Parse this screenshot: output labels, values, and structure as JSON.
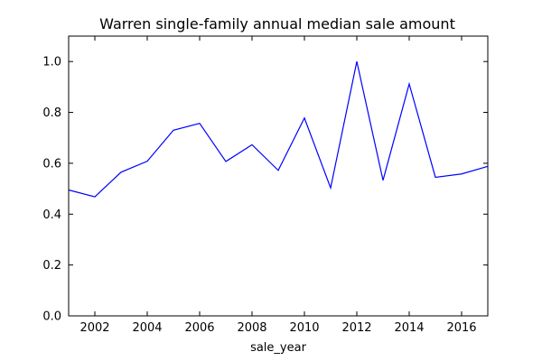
{
  "chart_data": {
    "type": "line",
    "title": "Warren single-family annual median sale amount",
    "xlabel": "sale_year",
    "ylabel": "",
    "xlim": [
      2001,
      2017
    ],
    "ylim": [
      0.0,
      1.1
    ],
    "xticks": [
      2002,
      2004,
      2006,
      2008,
      2010,
      2012,
      2014,
      2016
    ],
    "yticks": [
      "0.0",
      "0.2",
      "0.4",
      "0.6",
      "0.8",
      "1.0"
    ],
    "grid": false,
    "series": [
      {
        "color": "#0000ff",
        "x": [
          2001,
          2002,
          2003,
          2004,
          2005,
          2006,
          2007,
          2008,
          2009,
          2010,
          2011,
          2012,
          2013,
          2014,
          2015,
          2016,
          2017
        ],
        "values": [
          0.495,
          0.468,
          0.565,
          0.608,
          0.73,
          0.757,
          0.607,
          0.673,
          0.572,
          0.778,
          0.503,
          1.0,
          0.533,
          0.912,
          0.545,
          0.558,
          0.588
        ]
      }
    ]
  }
}
